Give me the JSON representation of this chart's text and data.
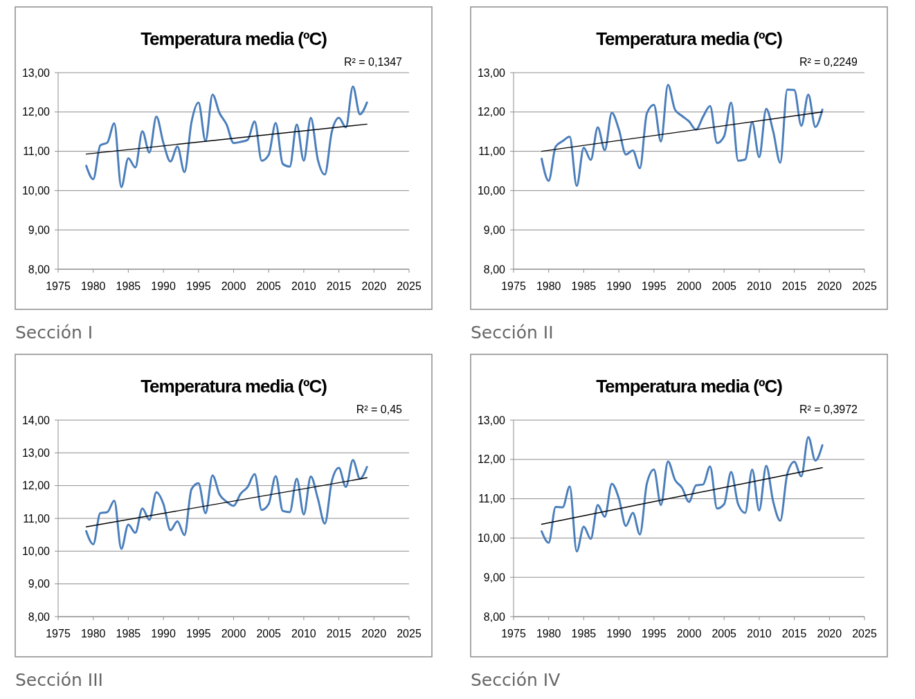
{
  "chart_data": [
    {
      "type": "line",
      "title": "Temperatura media (ºC)",
      "annotations": [
        "R² = 0,1347",
        "Sección I"
      ],
      "x": [
        1979,
        1980,
        1981,
        1982,
        1983,
        1984,
        1985,
        1986,
        1987,
        1988,
        1989,
        1990,
        1991,
        1992,
        1993,
        1994,
        1995,
        1996,
        1997,
        1998,
        1999,
        2000,
        2001,
        2002,
        2003,
        2004,
        2005,
        2006,
        2007,
        2008,
        2009,
        2010,
        2011,
        2012,
        2013,
        2014,
        2015,
        2016,
        2017,
        2018,
        2019
      ],
      "xlim": [
        1975,
        2025
      ],
      "xticks": [
        1975,
        1980,
        1985,
        1990,
        1995,
        2000,
        2005,
        2010,
        2015,
        2020,
        2025
      ],
      "ylim": [
        8,
        13
      ],
      "yticks": [
        {
          "value": 8,
          "label": "8,00"
        },
        {
          "value": 9,
          "label": "9,00"
        },
        {
          "value": 10,
          "label": "10,00"
        },
        {
          "value": 11,
          "label": "11,00"
        },
        {
          "value": 12,
          "label": "12,00"
        },
        {
          "value": 13,
          "label": "13,00"
        }
      ],
      "grid": "y",
      "series": [
        {
          "color": "#4a7ebb",
          "values": [
            10.63,
            10.29,
            11.15,
            11.22,
            11.71,
            10.09,
            10.82,
            10.59,
            11.51,
            10.97,
            11.88,
            11.21,
            10.74,
            11.12,
            10.47,
            11.74,
            12.24,
            11.26,
            12.44,
            11.97,
            11.68,
            11.21,
            11.24,
            11.29,
            11.76,
            10.76,
            10.91,
            11.72,
            10.68,
            10.61,
            11.68,
            10.76,
            11.85,
            10.79,
            10.41,
            11.5,
            11.85,
            11.61,
            12.65,
            11.94,
            12.24
          ]
        },
        {
          "type": "line",
          "color": "#000000",
          "values": [
            10.93,
            null,
            null,
            null,
            null,
            null,
            null,
            null,
            null,
            null,
            null,
            null,
            null,
            null,
            null,
            null,
            null,
            null,
            null,
            null,
            null,
            null,
            null,
            null,
            null,
            null,
            null,
            null,
            null,
            null,
            null,
            null,
            null,
            null,
            null,
            null,
            null,
            null,
            null,
            null,
            11.69
          ]
        }
      ]
    },
    {
      "type": "line",
      "title": "Temperatura media (ºC)",
      "annotations": [
        "R² = 0,2249",
        "Sección II"
      ],
      "x": [
        1979,
        1980,
        1981,
        1982,
        1983,
        1984,
        1985,
        1986,
        1987,
        1988,
        1989,
        1990,
        1991,
        1992,
        1993,
        1994,
        1995,
        1996,
        1997,
        1998,
        1999,
        2000,
        2001,
        2002,
        2003,
        2004,
        2005,
        2006,
        2007,
        2008,
        2009,
        2010,
        2011,
        2012,
        2013,
        2014,
        2015,
        2016,
        2017,
        2018,
        2019
      ],
      "xlim": [
        1975,
        2025
      ],
      "xticks": [
        1975,
        1980,
        1985,
        1990,
        1995,
        2000,
        2005,
        2010,
        2015,
        2020,
        2025
      ],
      "ylim": [
        8,
        13
      ],
      "yticks": [
        {
          "value": 8,
          "label": "8,00"
        },
        {
          "value": 9,
          "label": "9,00"
        },
        {
          "value": 10,
          "label": "10,00"
        },
        {
          "value": 11,
          "label": "11,00"
        },
        {
          "value": 12,
          "label": "12,00"
        },
        {
          "value": 13,
          "label": "13,00"
        }
      ],
      "grid": "y",
      "series": [
        {
          "color": "#4a7ebb",
          "values": [
            10.81,
            10.25,
            11.12,
            11.26,
            11.37,
            10.12,
            11.09,
            10.78,
            11.61,
            11.03,
            11.98,
            11.56,
            10.92,
            11.02,
            10.57,
            11.97,
            12.18,
            11.25,
            12.69,
            12.06,
            11.9,
            11.76,
            11.55,
            11.88,
            12.15,
            11.21,
            11.38,
            12.24,
            10.76,
            10.79,
            11.74,
            10.85,
            12.08,
            11.5,
            10.71,
            12.57,
            12.56,
            11.65,
            12.44,
            11.62,
            12.06
          ]
        },
        {
          "type": "line",
          "color": "#000000",
          "values": [
            11.0,
            null,
            null,
            null,
            null,
            null,
            null,
            null,
            null,
            null,
            null,
            null,
            null,
            null,
            null,
            null,
            null,
            null,
            null,
            null,
            null,
            null,
            null,
            null,
            null,
            null,
            null,
            null,
            null,
            null,
            null,
            null,
            null,
            null,
            null,
            null,
            null,
            null,
            null,
            null,
            12.0
          ]
        }
      ]
    },
    {
      "type": "line",
      "title": "Temperatura media (ºC)",
      "annotations": [
        "R² = 0,45",
        "Sección III"
      ],
      "x": [
        1979,
        1980,
        1981,
        1982,
        1983,
        1984,
        1985,
        1986,
        1987,
        1988,
        1989,
        1990,
        1991,
        1992,
        1993,
        1994,
        1995,
        1996,
        1997,
        1998,
        1999,
        2000,
        2001,
        2002,
        2003,
        2004,
        2005,
        2006,
        2007,
        2008,
        2009,
        2010,
        2011,
        2012,
        2013,
        2014,
        2015,
        2016,
        2017,
        2018,
        2019
      ],
      "xlim": [
        1975,
        2025
      ],
      "xticks": [
        1975,
        1980,
        1985,
        1990,
        1995,
        2000,
        2005,
        2010,
        2015,
        2020,
        2025
      ],
      "ylim": [
        8,
        14
      ],
      "yticks": [
        {
          "value": 8,
          "label": "8,00"
        },
        {
          "value": 9,
          "label": "9,00"
        },
        {
          "value": 10,
          "label": "10,00"
        },
        {
          "value": 11,
          "label": "11,00"
        },
        {
          "value": 12,
          "label": "12,00"
        },
        {
          "value": 13,
          "label": "13,00"
        },
        {
          "value": 14,
          "label": "14,00"
        }
      ],
      "grid": "y",
      "series": [
        {
          "color": "#4a7ebb",
          "values": [
            10.61,
            10.21,
            11.16,
            11.19,
            11.54,
            10.07,
            10.81,
            10.56,
            11.3,
            10.96,
            11.8,
            11.44,
            10.64,
            10.91,
            10.49,
            11.89,
            12.07,
            11.16,
            12.31,
            11.73,
            11.51,
            11.38,
            11.75,
            11.96,
            12.35,
            11.26,
            11.44,
            12.29,
            11.23,
            11.19,
            12.21,
            11.12,
            12.28,
            11.61,
            10.84,
            12.14,
            12.54,
            11.96,
            12.78,
            12.21,
            12.57
          ]
        },
        {
          "type": "line",
          "color": "#000000",
          "values": [
            10.74,
            null,
            null,
            null,
            null,
            null,
            null,
            null,
            null,
            null,
            null,
            null,
            null,
            null,
            null,
            null,
            null,
            null,
            null,
            null,
            null,
            null,
            null,
            null,
            null,
            null,
            null,
            null,
            null,
            null,
            null,
            null,
            null,
            null,
            null,
            null,
            null,
            null,
            null,
            null,
            12.24
          ]
        }
      ]
    },
    {
      "type": "line",
      "title": "Temperatura media (ºC)",
      "annotations": [
        "R² = 0,3972",
        "Sección IV"
      ],
      "x": [
        1979,
        1980,
        1981,
        1982,
        1983,
        1984,
        1985,
        1986,
        1987,
        1988,
        1989,
        1990,
        1991,
        1992,
        1993,
        1994,
        1995,
        1996,
        1997,
        1998,
        1999,
        2000,
        2001,
        2002,
        2003,
        2004,
        2005,
        2006,
        2007,
        2008,
        2009,
        2010,
        2011,
        2012,
        2013,
        2014,
        2015,
        2016,
        2017,
        2018,
        2019
      ],
      "xlim": [
        1975,
        2025
      ],
      "xticks": [
        1975,
        1980,
        1985,
        1990,
        1995,
        2000,
        2005,
        2010,
        2015,
        2020,
        2025
      ],
      "ylim": [
        8,
        13
      ],
      "yticks": [
        {
          "value": 8,
          "label": "8,00"
        },
        {
          "value": 9,
          "label": "9,00"
        },
        {
          "value": 10,
          "label": "10,00"
        },
        {
          "value": 11,
          "label": "11,00"
        },
        {
          "value": 12,
          "label": "12,00"
        },
        {
          "value": 13,
          "label": "13,00"
        }
      ],
      "grid": "y",
      "series": [
        {
          "color": "#4a7ebb",
          "values": [
            10.17,
            9.88,
            10.79,
            10.78,
            11.31,
            9.66,
            10.29,
            9.98,
            10.84,
            10.54,
            11.38,
            11.01,
            10.31,
            10.64,
            10.09,
            11.39,
            11.74,
            10.84,
            11.95,
            11.48,
            11.28,
            10.92,
            11.34,
            11.36,
            11.82,
            10.75,
            10.86,
            11.68,
            10.86,
            10.64,
            11.74,
            10.7,
            11.84,
            10.92,
            10.44,
            11.63,
            11.94,
            11.57,
            12.57,
            11.97,
            12.36
          ]
        },
        {
          "type": "line",
          "color": "#000000",
          "values": [
            10.35,
            null,
            null,
            null,
            null,
            null,
            null,
            null,
            null,
            null,
            null,
            null,
            null,
            null,
            null,
            null,
            null,
            null,
            null,
            null,
            null,
            null,
            null,
            null,
            null,
            null,
            null,
            null,
            null,
            null,
            null,
            null,
            null,
            null,
            null,
            null,
            null,
            null,
            null,
            null,
            11.79
          ]
        }
      ]
    }
  ]
}
